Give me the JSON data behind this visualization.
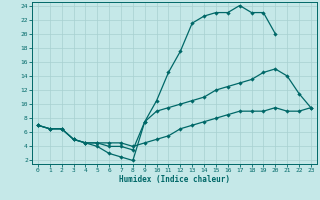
{
  "xlabel": "Humidex (Indice chaleur)",
  "background_color": "#c5e8e8",
  "grid_color": "#a8d0d0",
  "line_color": "#006868",
  "xlim": [
    -0.5,
    23.5
  ],
  "ylim": [
    1.5,
    24.5
  ],
  "yticks": [
    2,
    4,
    6,
    8,
    10,
    12,
    14,
    16,
    18,
    20,
    22,
    24
  ],
  "xticks": [
    0,
    1,
    2,
    3,
    4,
    5,
    6,
    7,
    8,
    9,
    10,
    11,
    12,
    13,
    14,
    15,
    16,
    17,
    18,
    19,
    20,
    21,
    22,
    23
  ],
  "line1_x": [
    0,
    1,
    2,
    3,
    4,
    5,
    6,
    7,
    8,
    9,
    10,
    11,
    12,
    13,
    14,
    15,
    16,
    17,
    18,
    19,
    20
  ],
  "line1_y": [
    7,
    6.5,
    6.5,
    5,
    4.5,
    4,
    3,
    2.5,
    2,
    7.5,
    10.5,
    14.5,
    17.5,
    21.5,
    22.5,
    23,
    23,
    24,
    23,
    23,
    20
  ],
  "line2_x": [
    0,
    1,
    2,
    3,
    4,
    5,
    6,
    7,
    8,
    9,
    10,
    11,
    12,
    13,
    14,
    15,
    16,
    17,
    18,
    19,
    20,
    21,
    22,
    23
  ],
  "line2_y": [
    7,
    6.5,
    6.5,
    5,
    4.5,
    4.5,
    4,
    4,
    3.5,
    7.5,
    9,
    9.5,
    10,
    10.5,
    11,
    12,
    12.5,
    13,
    13.5,
    14.5,
    15,
    14,
    11.5,
    9.5
  ],
  "line3_x": [
    0,
    1,
    2,
    3,
    4,
    5,
    6,
    7,
    8,
    9,
    10,
    11,
    12,
    13,
    14,
    15,
    16,
    17,
    18,
    19,
    20,
    21,
    22,
    23
  ],
  "line3_y": [
    7,
    6.5,
    6.5,
    5,
    4.5,
    4.5,
    4.5,
    4.5,
    4,
    4.5,
    5,
    5.5,
    6.5,
    7,
    7.5,
    8,
    8.5,
    9,
    9,
    9,
    9.5,
    9,
    9,
    9.5
  ]
}
